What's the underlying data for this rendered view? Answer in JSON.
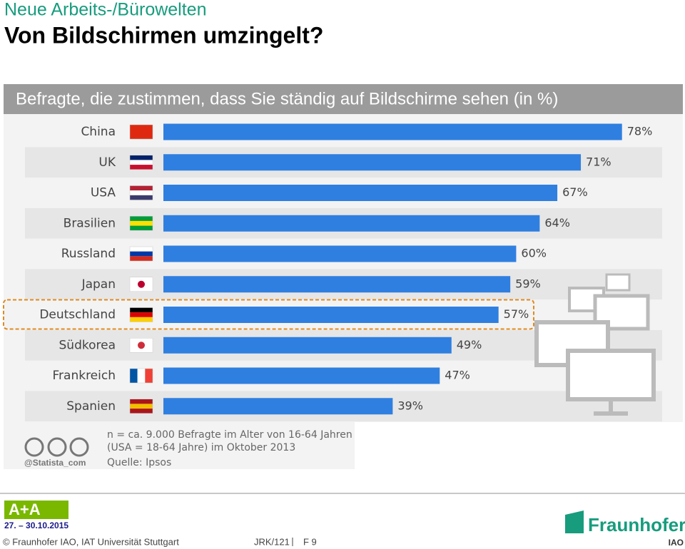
{
  "header": {
    "kicker": "Neue Arbeits-/Bürowelten",
    "title": "Von Bildschirmen umzingelt?"
  },
  "chart_data": {
    "type": "bar",
    "orientation": "horizontal",
    "title": "Befragte, die zustimmen, dass Sie ständig auf Bildschirme sehen (in %)",
    "categories": [
      "China",
      "UK",
      "USA",
      "Brasilien",
      "Russland",
      "Japan",
      "Deutschland",
      "Südkorea",
      "Frankreich",
      "Spanien"
    ],
    "values": [
      78,
      71,
      67,
      64,
      60,
      59,
      57,
      49,
      47,
      39
    ],
    "value_labels": [
      "78%",
      "71%",
      "67%",
      "64%",
      "60%",
      "59%",
      "57%",
      "49%",
      "47%",
      "39%"
    ],
    "color": "#2f7fe0",
    "highlight": "Deutschland"
  },
  "notes": {
    "lines": [
      "n = ca. 9.000 Befragte im Alter von 16-64 Jahren",
      "(USA = 18-64 Jahre) im Oktober 2013"
    ],
    "source": "Quelle: Ipsos",
    "handle": "@Statista_com"
  },
  "footer": {
    "event_date": "27. – 30.10.2015",
    "copyright": "© Fraunhofer IAO, IAT Universität Stuttgart",
    "doc_id": "JRK/121",
    "page": "F 9",
    "brand": "Fraunhofer",
    "unit": "IAO"
  }
}
